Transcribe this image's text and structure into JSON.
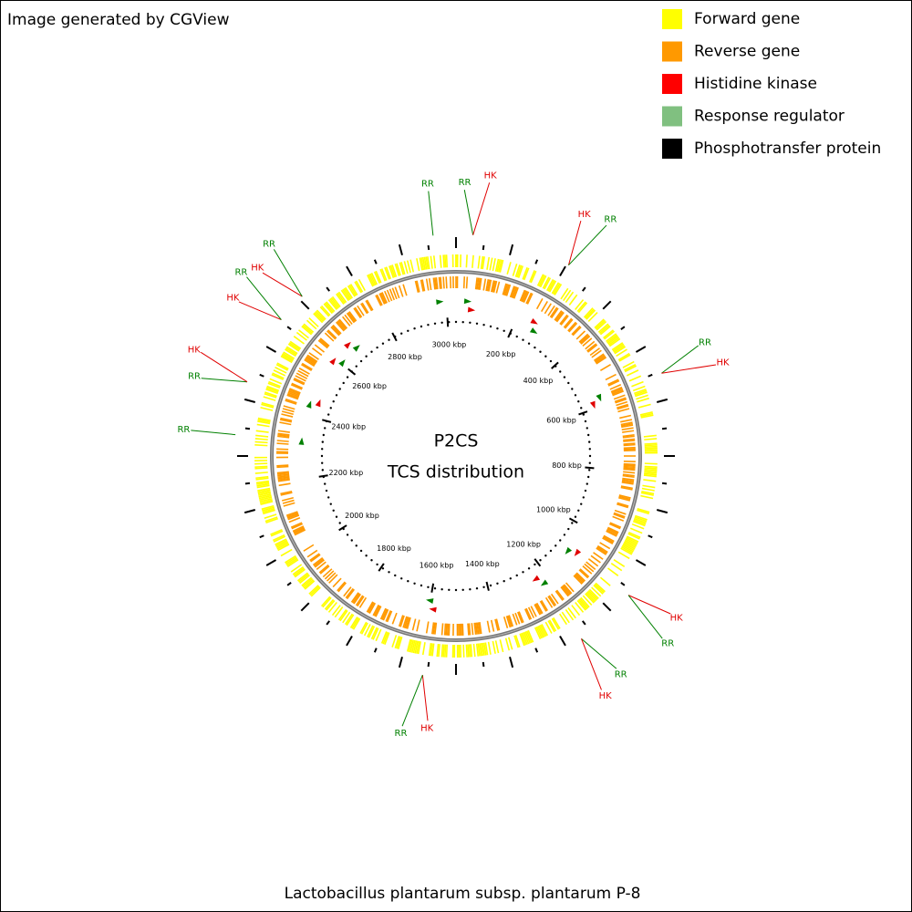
{
  "header": {
    "credit": "Image generated by CGView"
  },
  "legend": [
    {
      "label": "Forward gene",
      "color": "#ffff00"
    },
    {
      "label": "Reverse gene",
      "color": "#ff9900"
    },
    {
      "label": "Histidine kinase",
      "color": "#ff0000"
    },
    {
      "label": "Response regulator",
      "color": "#80c080"
    },
    {
      "label": "Phosphotransfer protein",
      "color": "#000000"
    }
  ],
  "map": {
    "title": "P2CS",
    "subtitle": "TCS distribution",
    "range_kbp": [
      0,
      3030
    ],
    "ticks": [
      {
        "value": 200,
        "label": "200 kbp"
      },
      {
        "value": 400,
        "label": "400 kbp"
      },
      {
        "value": 600,
        "label": "600 kbp"
      },
      {
        "value": 800,
        "label": "800 kbp"
      },
      {
        "value": 1000,
        "label": "1000 kbp"
      },
      {
        "value": 1200,
        "label": "1200 kbp"
      },
      {
        "value": 1400,
        "label": "1400 kbp"
      },
      {
        "value": 1600,
        "label": "1600 kbp"
      },
      {
        "value": 1800,
        "label": "1800 kbp"
      },
      {
        "value": 2000,
        "label": "2000 kbp"
      },
      {
        "value": 2200,
        "label": "2200 kbp"
      },
      {
        "value": 2400,
        "label": "2400 kbp"
      },
      {
        "value": 2600,
        "label": "2600 kbp"
      },
      {
        "value": 2800,
        "label": "2800 kbp"
      },
      {
        "value": 3000,
        "label": "3000 kbp"
      }
    ],
    "features": [
      {
        "position_kbp": 2980,
        "labels": [
          {
            "text": "RR",
            "color": "#008000"
          }
        ]
      },
      {
        "position_kbp": 37,
        "labels": [
          {
            "text": "RR",
            "color": "#008000"
          },
          {
            "text": "HK",
            "color": "#e00000"
          }
        ]
      },
      {
        "position_kbp": 257,
        "labels": [
          {
            "text": "HK",
            "color": "#e00000"
          },
          {
            "text": "RR",
            "color": "#008000"
          }
        ]
      },
      {
        "position_kbp": 573,
        "labels": [
          {
            "text": "RR",
            "color": "#008000"
          },
          {
            "text": "HK",
            "color": "#e00000"
          }
        ]
      },
      {
        "position_kbp": 1085,
        "labels": [
          {
            "text": "HK",
            "color": "#e00000"
          },
          {
            "text": "RR",
            "color": "#008000"
          }
        ]
      },
      {
        "position_kbp": 1225,
        "labels": [
          {
            "text": "RR",
            "color": "#008000"
          },
          {
            "text": "HK",
            "color": "#e00000"
          }
        ]
      },
      {
        "position_kbp": 1588,
        "labels": [
          {
            "text": "HK",
            "color": "#e00000"
          },
          {
            "text": "RR",
            "color": "#008000"
          }
        ]
      },
      {
        "position_kbp": 2319,
        "labels": [
          {
            "text": "RR",
            "color": "#008000"
          }
        ]
      },
      {
        "position_kbp": 2437,
        "labels": [
          {
            "text": "RR",
            "color": "#008000"
          },
          {
            "text": "HK",
            "color": "#e00000"
          }
        ]
      },
      {
        "position_kbp": 2592,
        "labels": [
          {
            "text": "HK",
            "color": "#e00000"
          },
          {
            "text": "RR",
            "color": "#008000"
          }
        ]
      },
      {
        "position_kbp": 2660,
        "labels": [
          {
            "text": "HK",
            "color": "#e00000"
          },
          {
            "text": "RR",
            "color": "#008000"
          }
        ]
      }
    ]
  },
  "footer": {
    "organism": "Lactobacillus plantarum subsp. plantarum P-8"
  }
}
